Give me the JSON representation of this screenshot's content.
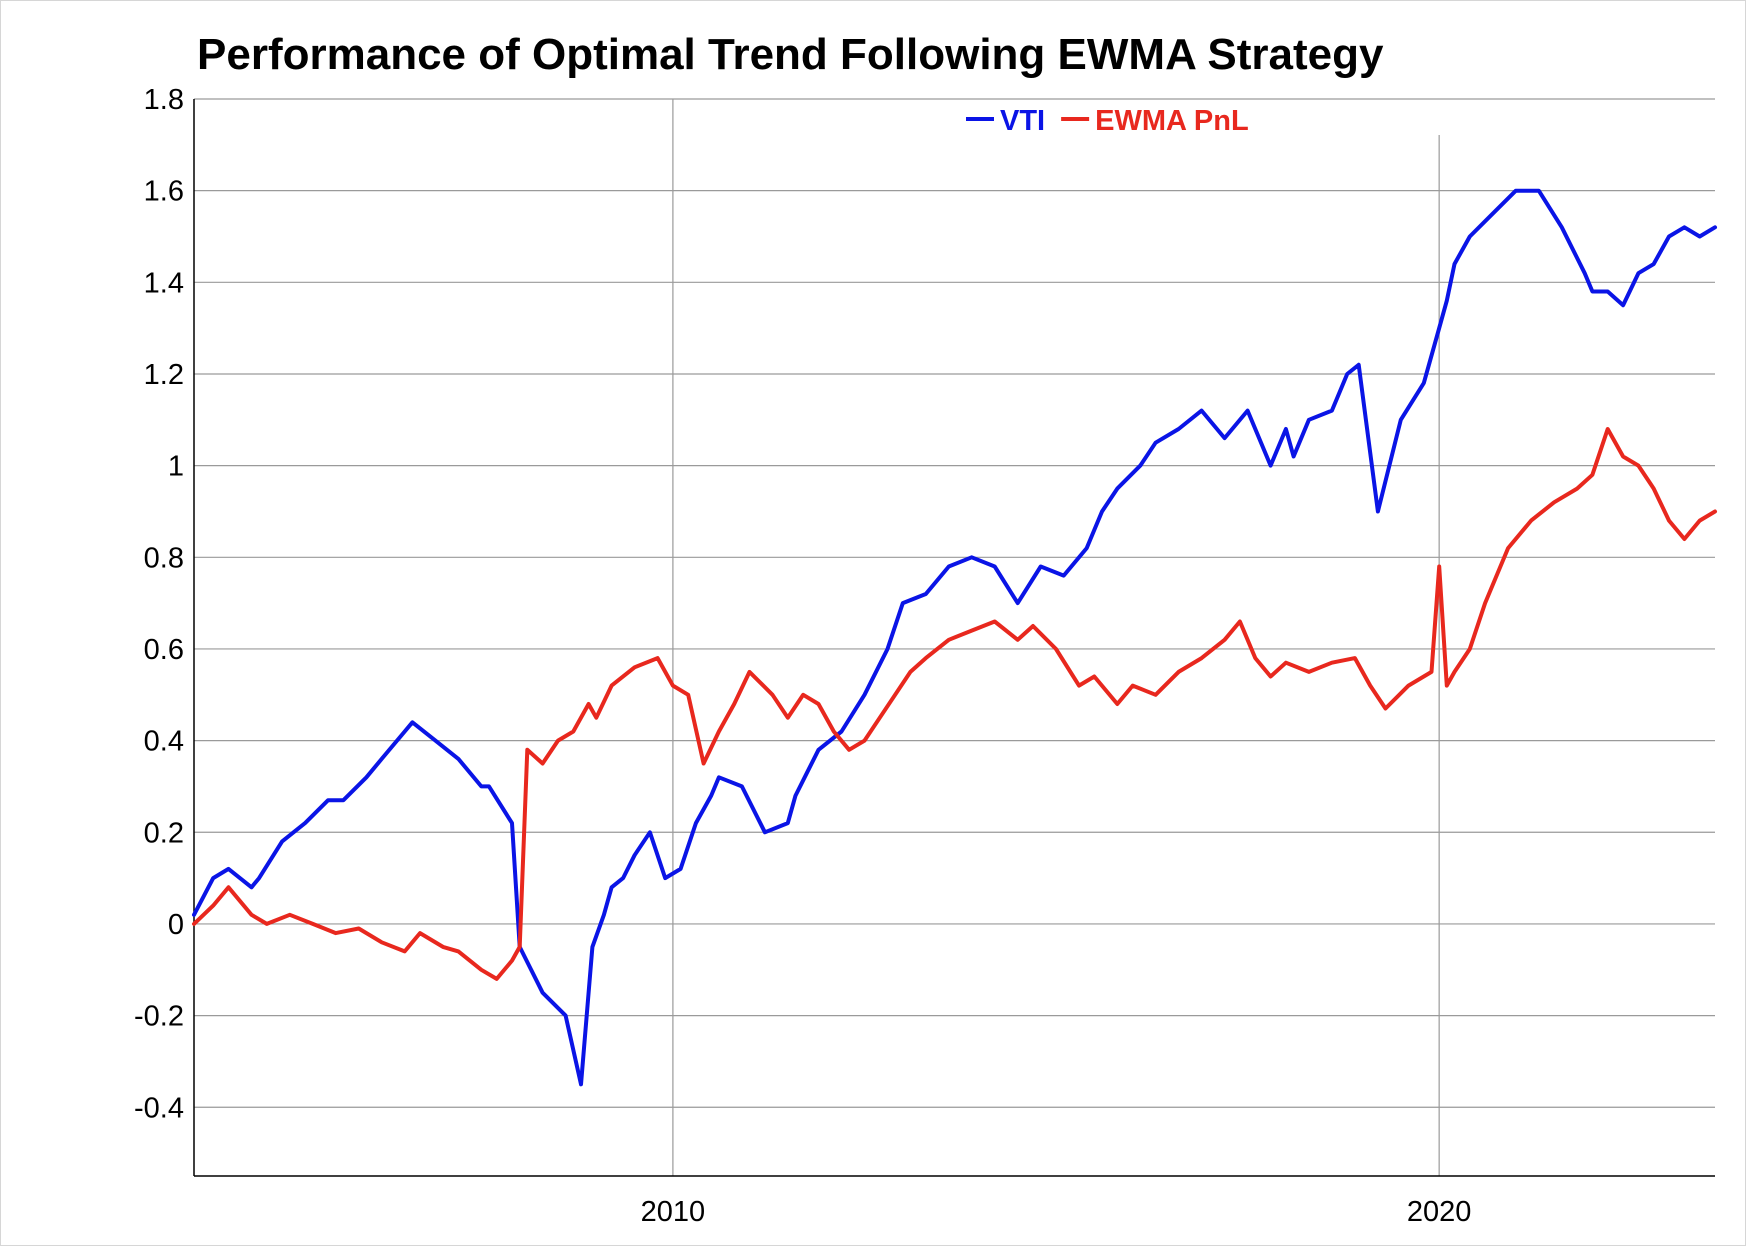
{
  "chart_data": {
    "type": "line",
    "title": "Performance of Optimal Trend Following EWMA Strategy",
    "xlabel": "",
    "ylabel": "",
    "xlim": [
      2003.75,
      2023.6
    ],
    "ylim": [
      -0.55,
      1.8
    ],
    "y_ticks": [
      1.8,
      1.6,
      1.4,
      1.2,
      1,
      0.8,
      0.6,
      0.4,
      0.2,
      0,
      -0.2,
      -0.4
    ],
    "y_tick_labels": [
      "1.8",
      "1.6",
      "1.4",
      "1.2",
      "1",
      "0.8",
      "0.6",
      "0.4",
      "0.2",
      "0",
      "-0.2",
      "-0.4"
    ],
    "x_ticks": [
      2010,
      2020
    ],
    "x_tick_labels": [
      "2010",
      "2020"
    ],
    "grid": true,
    "legend_position": "top-center",
    "series": [
      {
        "name": "VTI",
        "color": "#0a14e6",
        "x": [
          2003.75,
          2004.0,
          2004.2,
          2004.5,
          2004.6,
          2004.9,
          2005.2,
          2005.5,
          2005.7,
          2006.0,
          2006.2,
          2006.5,
          2006.6,
          2006.9,
          2007.2,
          2007.5,
          2007.6,
          2007.9,
          2008.0,
          2008.3,
          2008.6,
          2008.8,
          2008.95,
          2009.1,
          2009.2,
          2009.35,
          2009.5,
          2009.7,
          2009.9,
          2010.1,
          2010.3,
          2010.5,
          2010.6,
          2010.9,
          2011.2,
          2011.5,
          2011.6,
          2011.75,
          2011.9,
          2012.2,
          2012.5,
          2012.8,
          2013.0,
          2013.3,
          2013.6,
          2013.9,
          2014.2,
          2014.5,
          2014.8,
          2015.1,
          2015.4,
          2015.6,
          2015.8,
          2016.1,
          2016.3,
          2016.6,
          2016.9,
          2017.2,
          2017.5,
          2017.8,
          2018.0,
          2018.1,
          2018.3,
          2018.6,
          2018.8,
          2018.95,
          2019.2,
          2019.5,
          2019.8,
          2020.0,
          2020.1,
          2020.2,
          2020.4,
          2020.7,
          2021.0,
          2021.3,
          2021.6,
          2021.9,
          2022.0,
          2022.2,
          2022.4,
          2022.6,
          2022.8,
          2023.0,
          2023.2,
          2023.4,
          2023.6
        ],
        "values": [
          0.02,
          0.1,
          0.12,
          0.08,
          0.1,
          0.18,
          0.22,
          0.27,
          0.27,
          0.32,
          0.36,
          0.42,
          0.44,
          0.4,
          0.36,
          0.3,
          0.3,
          0.22,
          -0.05,
          -0.15,
          -0.2,
          -0.35,
          -0.05,
          0.02,
          0.08,
          0.1,
          0.15,
          0.2,
          0.1,
          0.12,
          0.22,
          0.28,
          0.32,
          0.3,
          0.2,
          0.22,
          0.28,
          0.33,
          0.38,
          0.42,
          0.5,
          0.6,
          0.7,
          0.72,
          0.78,
          0.8,
          0.78,
          0.7,
          0.78,
          0.76,
          0.82,
          0.9,
          0.95,
          1.0,
          1.05,
          1.08,
          1.12,
          1.06,
          1.12,
          1.0,
          1.08,
          1.02,
          1.1,
          1.12,
          1.2,
          1.22,
          0.9,
          1.1,
          1.18,
          1.3,
          1.36,
          1.44,
          1.5,
          1.55,
          1.6,
          1.6,
          1.52,
          1.42,
          1.38,
          1.38,
          1.35,
          1.42,
          1.44,
          1.5,
          1.52,
          1.5,
          1.52
        ]
      },
      {
        "name": "EWMA PnL",
        "color": "#e8281e",
        "x": [
          2003.75,
          2004.0,
          2004.2,
          2004.5,
          2004.7,
          2005.0,
          2005.3,
          2005.6,
          2005.9,
          2006.2,
          2006.5,
          2006.7,
          2007.0,
          2007.2,
          2007.5,
          2007.7,
          2007.9,
          2008.0,
          2008.1,
          2008.3,
          2008.5,
          2008.7,
          2008.9,
          2009.0,
          2009.2,
          2009.5,
          2009.8,
          2010.0,
          2010.2,
          2010.4,
          2010.6,
          2010.8,
          2011.0,
          2011.3,
          2011.5,
          2011.7,
          2011.9,
          2012.1,
          2012.3,
          2012.5,
          2012.7,
          2012.9,
          2013.1,
          2013.3,
          2013.6,
          2013.9,
          2014.2,
          2014.5,
          2014.7,
          2015.0,
          2015.3,
          2015.5,
          2015.8,
          2016.0,
          2016.3,
          2016.6,
          2016.9,
          2017.2,
          2017.4,
          2017.6,
          2017.8,
          2018.0,
          2018.3,
          2018.6,
          2018.9,
          2019.1,
          2019.3,
          2019.6,
          2019.9,
          2020.0,
          2020.1,
          2020.2,
          2020.4,
          2020.6,
          2020.9,
          2021.2,
          2021.5,
          2021.8,
          2022.0,
          2022.2,
          2022.4,
          2022.6,
          2022.8,
          2023.0,
          2023.2,
          2023.4,
          2023.6
        ],
        "values": [
          0.0,
          0.04,
          0.08,
          0.02,
          0.0,
          0.02,
          0.0,
          -0.02,
          -0.01,
          -0.04,
          -0.06,
          -0.02,
          -0.05,
          -0.06,
          -0.1,
          -0.12,
          -0.08,
          -0.05,
          0.38,
          0.35,
          0.4,
          0.42,
          0.48,
          0.45,
          0.52,
          0.56,
          0.58,
          0.52,
          0.5,
          0.35,
          0.42,
          0.48,
          0.55,
          0.5,
          0.45,
          0.5,
          0.48,
          0.42,
          0.38,
          0.4,
          0.45,
          0.5,
          0.55,
          0.58,
          0.62,
          0.64,
          0.66,
          0.62,
          0.65,
          0.6,
          0.52,
          0.54,
          0.48,
          0.52,
          0.5,
          0.55,
          0.58,
          0.62,
          0.66,
          0.58,
          0.54,
          0.57,
          0.55,
          0.57,
          0.58,
          0.52,
          0.47,
          0.52,
          0.55,
          0.78,
          0.52,
          0.55,
          0.6,
          0.7,
          0.82,
          0.88,
          0.92,
          0.95,
          0.98,
          1.08,
          1.02,
          1.0,
          0.95,
          0.88,
          0.84,
          0.88,
          0.9
        ]
      }
    ]
  }
}
